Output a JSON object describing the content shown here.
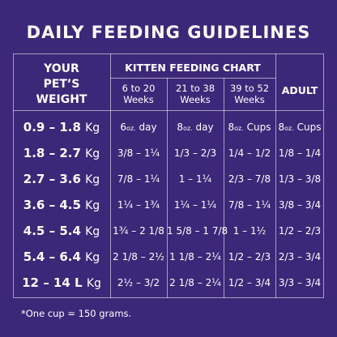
{
  "title": "DAILY FEEDING GUIDELINES",
  "headers": {
    "weight": [
      "YOUR",
      "PET’S",
      "WEIGHT"
    ],
    "kitten": "KITTEN FEEDING CHART",
    "adult": "ADULT",
    "subheaders": [
      {
        "line1": "6 to 20",
        "line2": "Weeks"
      },
      {
        "line1": "21 to 38",
        "line2": "Weeks"
      },
      {
        "line1": "39 to 52",
        "line2": "Weeks"
      }
    ]
  },
  "rows": [
    {
      "weight": "0.9 – 1.8",
      "unit": "Kg",
      "c1": [
        "6",
        "oz.",
        "day"
      ],
      "c2": [
        "8",
        "oz.",
        "day"
      ],
      "c3": [
        "8",
        "oz.",
        "Cups"
      ],
      "c4": [
        "8",
        "oz.",
        "Cups"
      ]
    },
    {
      "weight": "1.8 – 2.7",
      "unit": "Kg",
      "c1": [
        "3/8 – 1¼"
      ],
      "c2": [
        "1/3 – 2/3"
      ],
      "c3": [
        "1/4 – 1/2"
      ],
      "c4": [
        "1/8 – 1/4"
      ]
    },
    {
      "weight": "2.7 – 3.6",
      "unit": "Kg",
      "c1": [
        "7/8 – 1¼"
      ],
      "c2": [
        "1 – 1¼"
      ],
      "c3": [
        "2/3 – 7/8"
      ],
      "c4": [
        "1/3 – 3/8"
      ]
    },
    {
      "weight": "3.6 – 4.5",
      "unit": "Kg",
      "c1": [
        "1¼ – 1¾"
      ],
      "c2": [
        "1¼ – 1¼"
      ],
      "c3": [
        "7/8 – 1¼"
      ],
      "c4": [
        "3/8 – 3/4"
      ]
    },
    {
      "weight": "4.5 – 5.4",
      "unit": "Kg",
      "c1": [
        "1¾ – 2 1/8"
      ],
      "c2": [
        "1 5/8 – 1 7/8"
      ],
      "c3": [
        "1 – 1½"
      ],
      "c4": [
        "1/2 – 2/3"
      ]
    },
    {
      "weight": "5.4 – 6.4",
      "unit": "Kg",
      "c1": [
        "2 1/8 – 2½"
      ],
      "c2": [
        "1 1/8 – 2¼"
      ],
      "c3": [
        "1/2 – 2/3"
      ],
      "c4": [
        "2/3 – 3/4"
      ]
    },
    {
      "weight": "12 – 14 L",
      "unit": "Kg",
      "c1": [
        "2½ – 3/2"
      ],
      "c2": [
        "2 1/8 – 2¼"
      ],
      "c3": [
        "1/2 – 3/4"
      ],
      "c4": [
        "3/3 – 3/4"
      ]
    }
  ],
  "footnote": "*One cup = 150 grams.",
  "colors": {
    "background": "#3d2778",
    "text": "#ffffff"
  }
}
